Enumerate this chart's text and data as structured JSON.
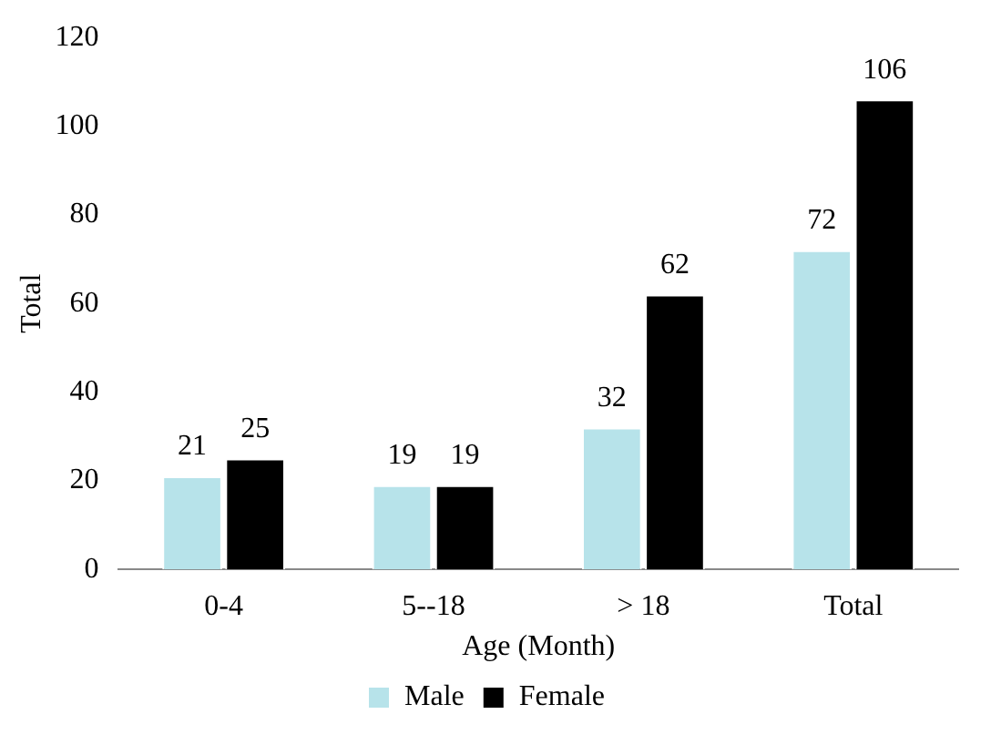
{
  "chart_data": {
    "type": "bar",
    "xlabel": "Age (Month)",
    "ylabel": "Total",
    "categories": [
      "0-4",
      "5--18",
      "> 18",
      "Total"
    ],
    "series": [
      {
        "name": "Male",
        "color": "#b7e3ea",
        "values": [
          21,
          19,
          32,
          72
        ]
      },
      {
        "name": "Female",
        "color": "#000000",
        "values": [
          25,
          19,
          62,
          106
        ]
      }
    ],
    "ylim": [
      0,
      120
    ],
    "yticks": [
      0,
      20,
      40,
      60,
      80,
      100,
      120
    ],
    "grid": false,
    "legend": "bottom",
    "data_labels": true
  }
}
